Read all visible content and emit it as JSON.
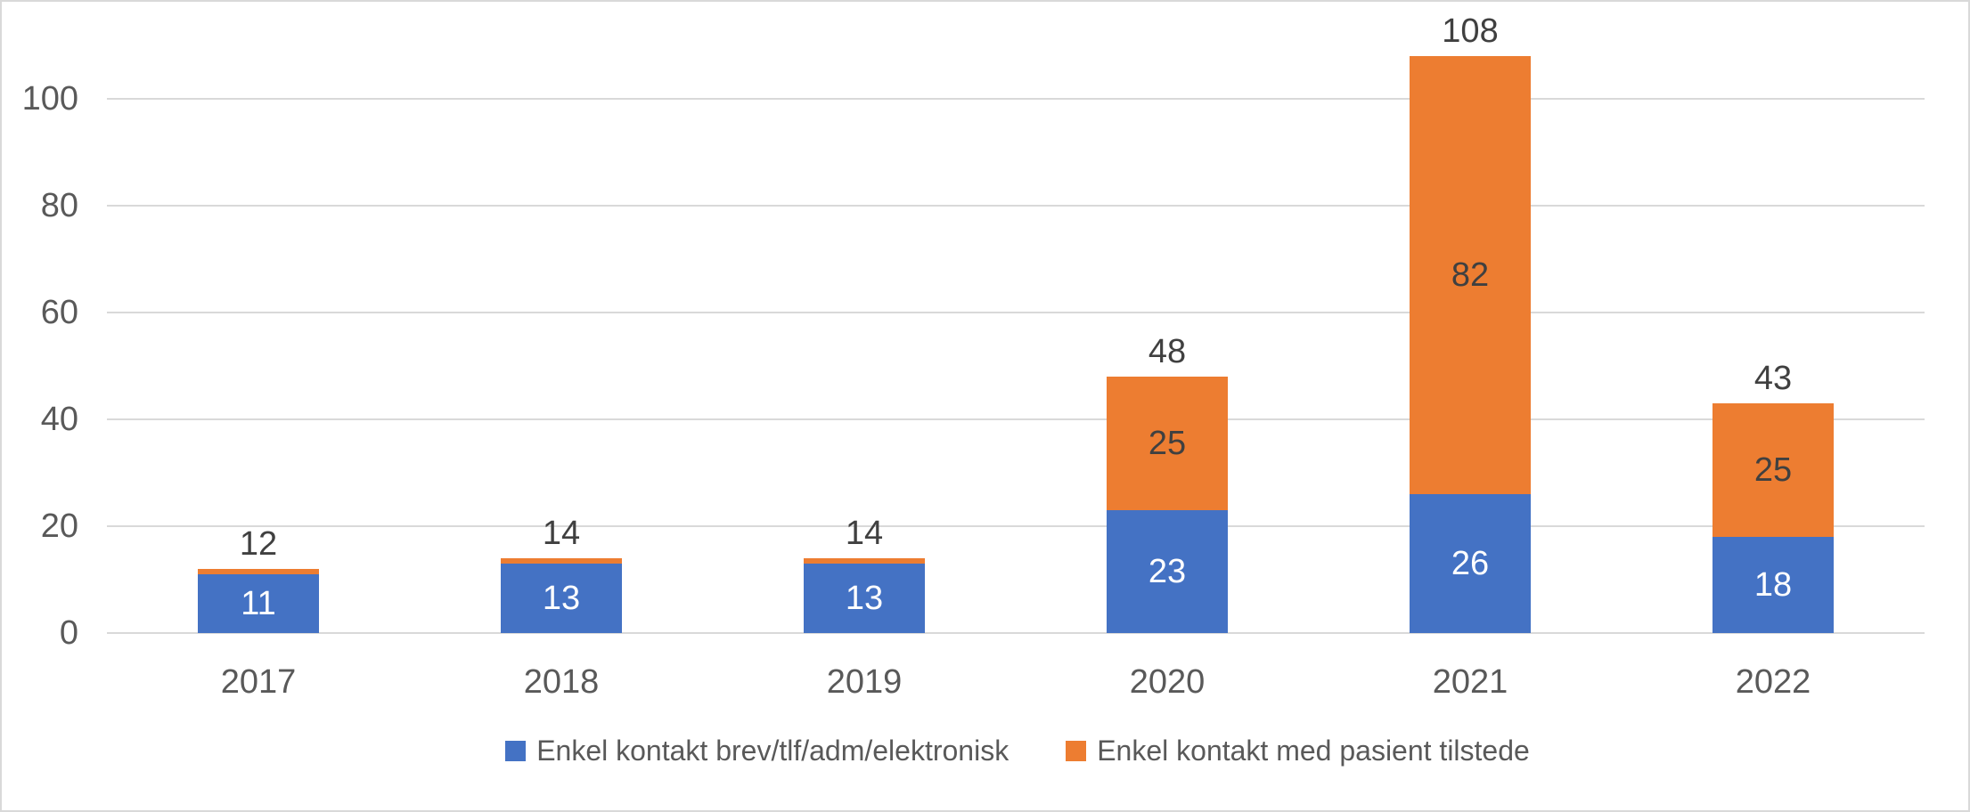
{
  "chart_data": {
    "type": "bar",
    "stacked": true,
    "categories": [
      "2017",
      "2018",
      "2019",
      "2020",
      "2021",
      "2022"
    ],
    "series": [
      {
        "name": "Enkel kontakt brev/tlf/adm/elektronisk",
        "color": "#4472c4",
        "label_color": "#ffffff",
        "values": [
          11,
          13,
          13,
          23,
          26,
          18
        ]
      },
      {
        "name": "Enkel kontakt med pasient tilstede",
        "color": "#ed7d31",
        "label_color": "#404040",
        "values": [
          1,
          1,
          1,
          25,
          82,
          25
        ]
      }
    ],
    "segment_labels": [
      [
        "11",
        "13",
        "13",
        "23",
        "26",
        "18"
      ],
      [
        "",
        "",
        "",
        "25",
        "82",
        "25"
      ]
    ],
    "totals": [
      "12",
      "14",
      "14",
      "48",
      "108",
      "43"
    ],
    "title": "",
    "xlabel": "",
    "ylabel": "",
    "ylim": [
      0,
      100
    ],
    "ytick_step": 20,
    "ytick_labels": [
      "0",
      "20",
      "40",
      "60",
      "80",
      "100"
    ],
    "grid": true,
    "legend_position": "bottom"
  },
  "colors": {
    "gridline": "#d9d9d9",
    "axis_text": "#595959",
    "data_label_dark": "#404040",
    "data_label_light": "#ffffff",
    "frame_border": "#d9d9d9",
    "background": "#ffffff"
  }
}
